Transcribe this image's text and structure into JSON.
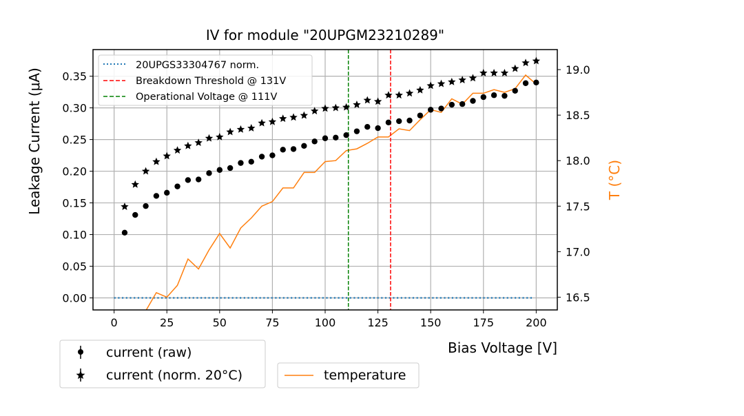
{
  "chart_data": {
    "type": "scatter",
    "title": "IV for module \"20UPGM23210289\"",
    "xlabel": "Bias Voltage [V]",
    "ylabel": "Leakage Current (μA)",
    "y2label": "T (°C)",
    "xlim": [
      -10,
      210
    ],
    "ylim": [
      -0.019,
      0.392
    ],
    "y2lim": [
      16.36,
      19.22
    ],
    "xticks": [
      "0",
      "25",
      "50",
      "75",
      "100",
      "125",
      "150",
      "175",
      "200"
    ],
    "yticks": [
      "0.00",
      "0.05",
      "0.10",
      "0.15",
      "0.20",
      "0.25",
      "0.30",
      "0.35"
    ],
    "y2ticks": [
      "16.5",
      "17.0",
      "17.5",
      "18.0",
      "18.5",
      "19.0"
    ],
    "grid": true,
    "colors": {
      "raw": "#000000",
      "norm": "#000000",
      "reference": "#1f77b4",
      "breakdown": "#ff0000",
      "operational": "#008000",
      "temperature": "#ff7f0e"
    },
    "x": [
      5,
      10,
      15,
      20,
      25,
      30,
      35,
      40,
      45,
      50,
      55,
      60,
      65,
      70,
      75,
      80,
      85,
      90,
      95,
      100,
      105,
      110,
      115,
      120,
      125,
      130,
      135,
      140,
      145,
      150,
      155,
      160,
      165,
      170,
      175,
      180,
      185,
      190,
      195,
      200
    ],
    "series": [
      {
        "name": "current (raw)",
        "marker": "circle",
        "values": [
          0.103,
          0.131,
          0.145,
          0.161,
          0.166,
          0.176,
          0.186,
          0.187,
          0.197,
          0.202,
          0.205,
          0.213,
          0.215,
          0.223,
          0.225,
          0.234,
          0.235,
          0.24,
          0.247,
          0.252,
          0.253,
          0.257,
          0.263,
          0.27,
          0.268,
          0.277,
          0.279,
          0.28,
          0.288,
          0.297,
          0.299,
          0.305,
          0.306,
          0.311,
          0.317,
          0.32,
          0.319,
          0.327,
          0.339,
          0.34
        ]
      },
      {
        "name": "current (norm. 20°C)",
        "marker": "star",
        "values": [
          0.144,
          0.179,
          0.2,
          0.215,
          0.224,
          0.233,
          0.24,
          0.245,
          0.252,
          0.254,
          0.262,
          0.266,
          0.268,
          0.276,
          0.278,
          0.283,
          0.285,
          0.288,
          0.295,
          0.299,
          0.3,
          0.301,
          0.305,
          0.312,
          0.31,
          0.32,
          0.32,
          0.323,
          0.328,
          0.335,
          0.338,
          0.341,
          0.344,
          0.347,
          0.355,
          0.355,
          0.355,
          0.362,
          0.371,
          0.374
        ]
      },
      {
        "name": "temperature",
        "axis": "right",
        "type": "line",
        "values": [
          16.05,
          16.2,
          16.35,
          16.55,
          16.5,
          16.63,
          16.92,
          16.81,
          17.02,
          17.2,
          17.04,
          17.26,
          17.37,
          17.5,
          17.55,
          17.7,
          17.7,
          17.87,
          17.87,
          17.99,
          18.0,
          18.11,
          18.13,
          18.19,
          18.26,
          18.26,
          18.35,
          18.33,
          18.45,
          18.56,
          18.53,
          18.68,
          18.62,
          18.74,
          18.74,
          18.78,
          18.75,
          18.79,
          18.94,
          18.84
        ]
      }
    ],
    "reference_line": {
      "name": "20UPGS33304767 norm.",
      "x_start": 0,
      "x_end": 198,
      "value": 0.0
    },
    "vlines": [
      {
        "name": "Breakdown Threshold @ 131V",
        "x": 131,
        "color": "#ff0000"
      },
      {
        "name": "Operational Voltage @ 111V",
        "x": 111,
        "color": "#008000"
      }
    ],
    "legends": {
      "inner": [
        "20UPGS33304767 norm.",
        "Breakdown Threshold @ 131V",
        "Operational Voltage @ 111V"
      ],
      "bottom_left": [
        "current (raw)",
        "current (norm. 20°C)"
      ],
      "bottom_right": [
        "temperature"
      ]
    }
  }
}
